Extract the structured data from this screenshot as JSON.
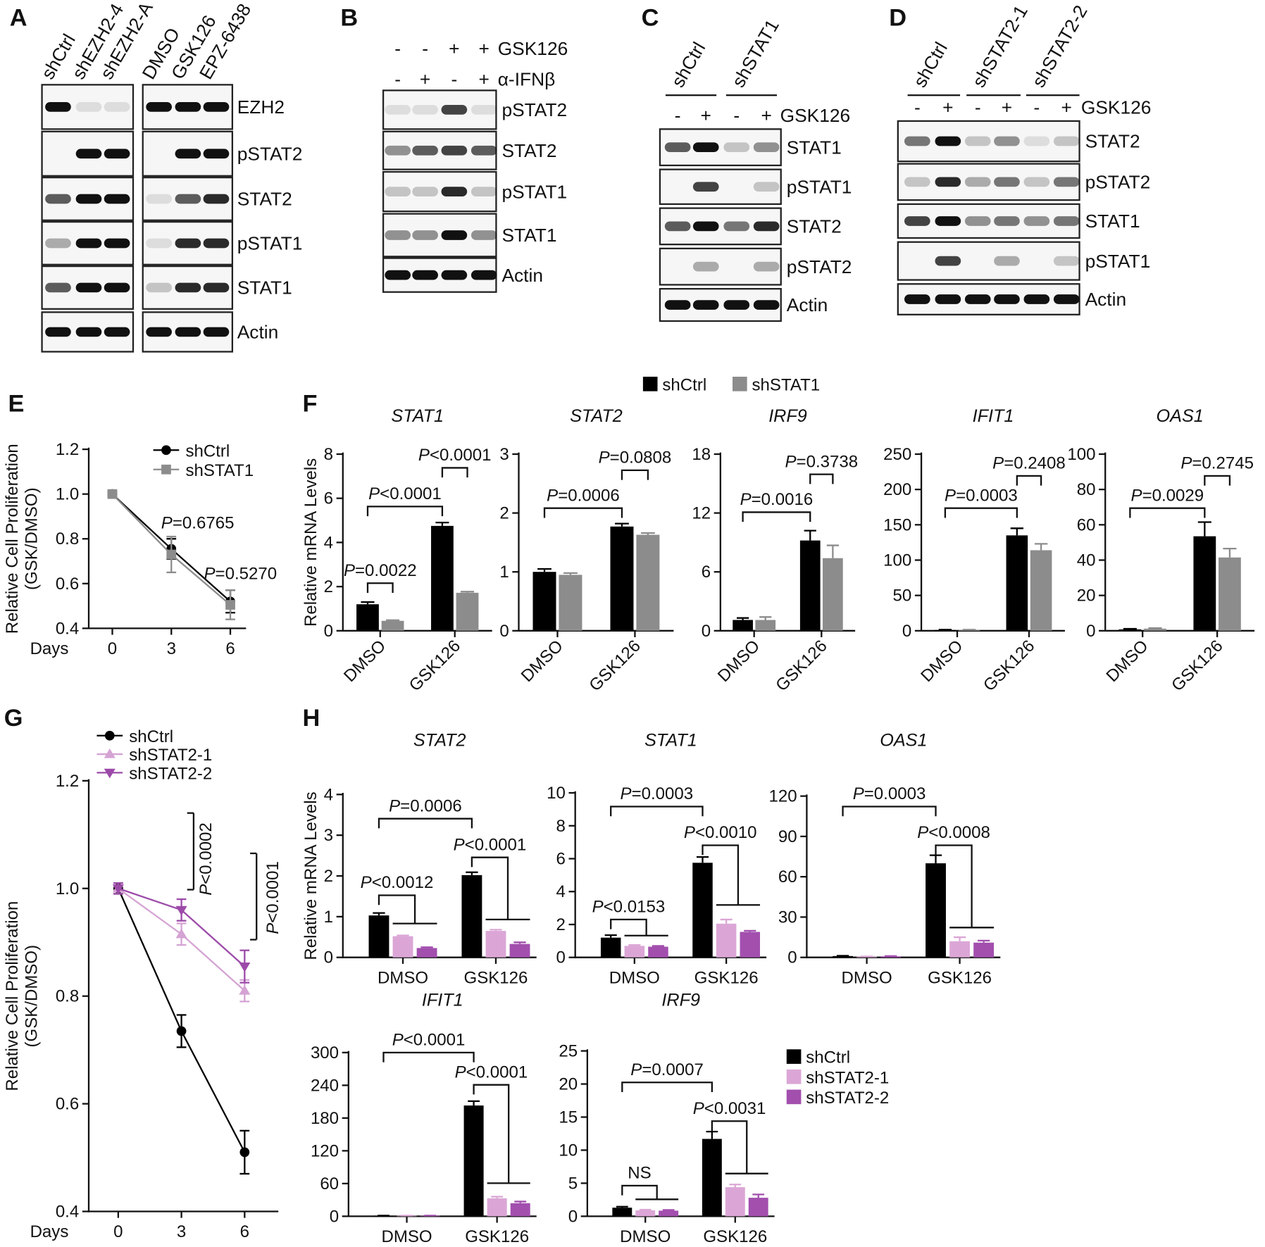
{
  "blots": [
    {
      "label": "A",
      "lanes": [
        "shCtrl",
        "shEZH2-4",
        "shEZH2-A",
        "DMSO",
        "GSK126",
        "EPZ-6438"
      ],
      "rows": [
        "EZH2",
        "pSTAT2",
        "STAT2",
        "pSTAT1",
        "STAT1",
        "Actin"
      ]
    },
    {
      "label": "B",
      "treatments": [
        {
          "name": "GSK126",
          "signs": [
            "-",
            "-",
            "+",
            "+"
          ]
        },
        {
          "name": "α-IFNβ",
          "signs": [
            "-",
            "+",
            "-",
            "+"
          ]
        }
      ],
      "rows": [
        "pSTAT2",
        "STAT2",
        "pSTAT1",
        "STAT1",
        "Actin"
      ]
    },
    {
      "label": "C",
      "groups": [
        "shCtrl",
        "shSTAT1"
      ],
      "treatments": [
        {
          "name": "GSK126",
          "signs": [
            "-",
            "+",
            "-",
            "+"
          ]
        }
      ],
      "rows": [
        "STAT1",
        "pSTAT1",
        "STAT2",
        "pSTAT2",
        "Actin"
      ]
    },
    {
      "label": "D",
      "groups": [
        "shCtrl",
        "shSTAT2-1",
        "shSTAT2-2"
      ],
      "treatments": [
        {
          "name": "GSK126",
          "signs": [
            "-",
            "+",
            "-",
            "+",
            "-",
            "+"
          ]
        }
      ],
      "rows": [
        "STAT2",
        "pSTAT2",
        "STAT1",
        "pSTAT1",
        "Actin"
      ]
    }
  ],
  "chart_data": [
    {
      "type": "line",
      "panel": "E",
      "ylabel": [
        "Relative Cell Proliferation",
        "(GSK/DMSO)"
      ],
      "xlabel": "Days",
      "x": [
        0,
        3,
        6
      ],
      "xlim": [
        -1.2,
        6.8
      ],
      "xticks": [
        0,
        3,
        6
      ],
      "ylim": [
        0.4,
        1.2
      ],
      "yticks": [
        0.4,
        0.6,
        0.8,
        {
          "value": 1,
          "label": "1.0"
        },
        1.2
      ],
      "series": [
        {
          "name": "shCtrl",
          "color": "#000000",
          "marker": "circle",
          "values": [
            1,
            0.755,
            0.52
          ],
          "errors": [
            0.01,
            0.045,
            0.05
          ]
        },
        {
          "name": "shSTAT1",
          "color": "#8c8c8c",
          "marker": "square",
          "values": [
            1,
            0.73,
            0.505
          ],
          "errors": [
            0.01,
            0.08,
            0.065
          ]
        }
      ],
      "annotations": [
        "P=0.6765",
        "P=0.5270"
      ]
    },
    {
      "type": "bar",
      "panel": "F",
      "title": "STAT1",
      "ylabel": "Relative mRNA Levels",
      "categories": [
        "DMSO",
        "GSK126"
      ],
      "ylim": [
        0,
        8
      ],
      "yticks": [
        0,
        2,
        4,
        6,
        8
      ],
      "series": [
        {
          "name": "shCtrl",
          "color": "#000000",
          "values": [
            1.2,
            4.75
          ],
          "errors": [
            0.1,
            0.15
          ]
        },
        {
          "name": "shSTAT1",
          "color": "#8c8c8c",
          "values": [
            0.45,
            1.72
          ],
          "errors": [
            0.03,
            0.05
          ]
        }
      ],
      "annotations": [
        "P<0.0001",
        "P<0.0001",
        "P=0.0022"
      ]
    },
    {
      "type": "bar",
      "title": "STAT2",
      "categories": [
        "DMSO",
        "GSK126"
      ],
      "ylim": [
        0,
        3
      ],
      "yticks": [
        0,
        1,
        2,
        3
      ],
      "series": [
        {
          "color": "#000000",
          "values": [
            1,
            1.77
          ],
          "errors": [
            0.05,
            0.05
          ]
        },
        {
          "color": "#8c8c8c",
          "values": [
            0.95,
            1.63
          ],
          "errors": [
            0.03,
            0.03
          ]
        }
      ],
      "annotations": [
        "P=0.0808",
        "P=0.0006"
      ]
    },
    {
      "type": "bar",
      "title": "IRF9",
      "categories": [
        "DMSO",
        "GSK126"
      ],
      "ylim": [
        0,
        18
      ],
      "yticks": [
        0,
        6,
        12,
        18
      ],
      "series": [
        {
          "color": "#000000",
          "values": [
            1.1,
            9.2
          ],
          "errors": [
            0.2,
            1
          ]
        },
        {
          "color": "#8c8c8c",
          "values": [
            1.1,
            7.4
          ],
          "errors": [
            0.3,
            1.3
          ]
        }
      ],
      "annotations": [
        "P=0.3738",
        "P=0.0016"
      ]
    },
    {
      "type": "bar",
      "title": "IFIT1",
      "categories": [
        "DMSO",
        "GSK126"
      ],
      "ylim": [
        0,
        250
      ],
      "yticks": [
        0,
        50,
        100,
        150,
        200,
        250
      ],
      "series": [
        {
          "color": "#000000",
          "values": [
            1,
            135
          ],
          "errors": [
            0.5,
            10
          ]
        },
        {
          "color": "#8c8c8c",
          "values": [
            1,
            114
          ],
          "errors": [
            0.5,
            9
          ]
        }
      ],
      "annotations": [
        "P=0.2408",
        "P=0.0003"
      ]
    },
    {
      "type": "bar",
      "title": "OAS1",
      "categories": [
        "DMSO",
        "GSK126"
      ],
      "ylim": [
        0,
        100
      ],
      "yticks": [
        0,
        20,
        40,
        60,
        80,
        100
      ],
      "series": [
        {
          "color": "#000000",
          "values": [
            0.8,
            53.5
          ],
          "errors": [
            0.3,
            8
          ]
        },
        {
          "color": "#8c8c8c",
          "values": [
            1.2,
            41.5
          ],
          "errors": [
            0.3,
            5
          ]
        }
      ],
      "annotations": [
        "P=0.2745",
        "P=0.0029"
      ]
    },
    {
      "type": "line",
      "panel": "G",
      "ylabel": [
        "Relative Cell Proliferation",
        "(GSK/DMSO)"
      ],
      "xlabel": "Days",
      "x": [
        0,
        3,
        6
      ],
      "xlim": [
        -1.4,
        7.6
      ],
      "xticks": [
        0,
        3,
        6
      ],
      "ylim": [
        0.4,
        1.2
      ],
      "yticks": [
        0.4,
        0.6,
        0.8,
        {
          "value": 1,
          "label": "1.0"
        },
        1.2
      ],
      "series": [
        {
          "name": "shCtrl",
          "color": "#000000",
          "marker": "circle",
          "values": [
            1,
            0.735,
            0.51
          ],
          "errors": [
            0.01,
            0.03,
            0.04
          ]
        },
        {
          "name": "shSTAT2-1",
          "color": "#d5a3d4",
          "marker": "triangle-up",
          "values": [
            1,
            0.915,
            0.81
          ],
          "errors": [
            0.01,
            0.02,
            0.02
          ]
        },
        {
          "name": "shSTAT2-2",
          "color": "#9c4aa9",
          "marker": "triangle-down",
          "values": [
            1,
            0.96,
            0.855
          ],
          "errors": [
            0.01,
            0.02,
            0.03
          ]
        }
      ],
      "annotations": [
        "P<0.0002",
        "P<0.0001"
      ]
    },
    {
      "type": "bar",
      "panel": "H",
      "title": "STAT2",
      "ylabel": "Relative mRNA Levels",
      "categories": [
        "DMSO",
        "GSK126"
      ],
      "ylim": [
        0,
        4
      ],
      "yticks": [
        0,
        1,
        2,
        3,
        4
      ],
      "series": [
        {
          "name": "shCtrl",
          "color": "#000000",
          "values": [
            1.03,
            2.02
          ],
          "errors": [
            0.06,
            0.07
          ]
        },
        {
          "name": "shSTAT2-1",
          "color": "#dba6d6",
          "values": [
            0.52,
            0.65
          ],
          "errors": [
            0.02,
            0.03
          ]
        },
        {
          "name": "shSTAT2-2",
          "color": "#a24fae",
          "values": [
            0.23,
            0.33
          ],
          "errors": [
            0.02,
            0.04
          ]
        }
      ],
      "annotations": [
        "P=0.0006",
        "P<0.0001",
        "P<0.0012"
      ]
    },
    {
      "type": "bar",
      "title": "STAT1",
      "categories": [
        "DMSO",
        "GSK126"
      ],
      "ylim": [
        0,
        10
      ],
      "yticks": [
        0,
        2,
        4,
        6,
        8,
        10
      ],
      "series": [
        {
          "color": "#000000",
          "values": [
            1.2,
            5.75
          ],
          "errors": [
            0.15,
            0.35
          ]
        },
        {
          "color": "#dba6d6",
          "values": [
            0.7,
            2.05
          ],
          "errors": [
            0.05,
            0.25
          ]
        },
        {
          "color": "#a24fae",
          "values": [
            0.65,
            1.55
          ],
          "errors": [
            0.05,
            0.07
          ]
        }
      ],
      "annotations": [
        "P=0.0003",
        "P<0.0010",
        "P<0.0153"
      ]
    },
    {
      "type": "bar",
      "title": "OAS1",
      "categories": [
        "DMSO",
        "GSK126"
      ],
      "ylim": [
        0,
        120
      ],
      "yticks": [
        0,
        30,
        60,
        90,
        120
      ],
      "series": [
        {
          "color": "#000000",
          "values": [
            1,
            70
          ],
          "errors": [
            0.2,
            6
          ]
        },
        {
          "color": "#dba6d6",
          "values": [
            0.5,
            12
          ],
          "errors": [
            0.2,
            3
          ]
        },
        {
          "color": "#a24fae",
          "values": [
            0.8,
            11
          ],
          "errors": [
            0.2,
            1.5
          ]
        }
      ],
      "annotations": [
        "P=0.0003",
        "P<0.0008"
      ]
    },
    {
      "type": "bar",
      "title": "IFIT1",
      "categories": [
        "DMSO",
        "GSK126"
      ],
      "ylim": [
        0,
        300
      ],
      "yticks": [
        0,
        60,
        120,
        180,
        240,
        300
      ],
      "series": [
        {
          "color": "#000000",
          "values": [
            1,
            203
          ],
          "errors": [
            0.3,
            8
          ]
        },
        {
          "color": "#dba6d6",
          "values": [
            1,
            33
          ],
          "errors": [
            0.3,
            3
          ]
        },
        {
          "color": "#a24fae",
          "values": [
            1,
            24
          ],
          "errors": [
            0.3,
            3
          ]
        }
      ],
      "annotations": [
        "P<0.0001",
        "P<0.0001"
      ]
    },
    {
      "type": "bar",
      "title": "IRF9",
      "categories": [
        "DMSO",
        "GSK126"
      ],
      "ylim": [
        0,
        25
      ],
      "yticks": [
        0,
        5,
        10,
        15,
        20,
        25
      ],
      "series": [
        {
          "color": "#000000",
          "values": [
            1.3,
            11.7
          ],
          "errors": [
            0.15,
            1.1
          ]
        },
        {
          "color": "#dba6d6",
          "values": [
            0.9,
            4.4
          ],
          "errors": [
            0.1,
            0.4
          ]
        },
        {
          "color": "#a24fae",
          "values": [
            0.85,
            2.8
          ],
          "errors": [
            0.1,
            0.5
          ]
        }
      ],
      "annotations": [
        "P=0.0007",
        "P<0.0031",
        "NS"
      ]
    }
  ]
}
